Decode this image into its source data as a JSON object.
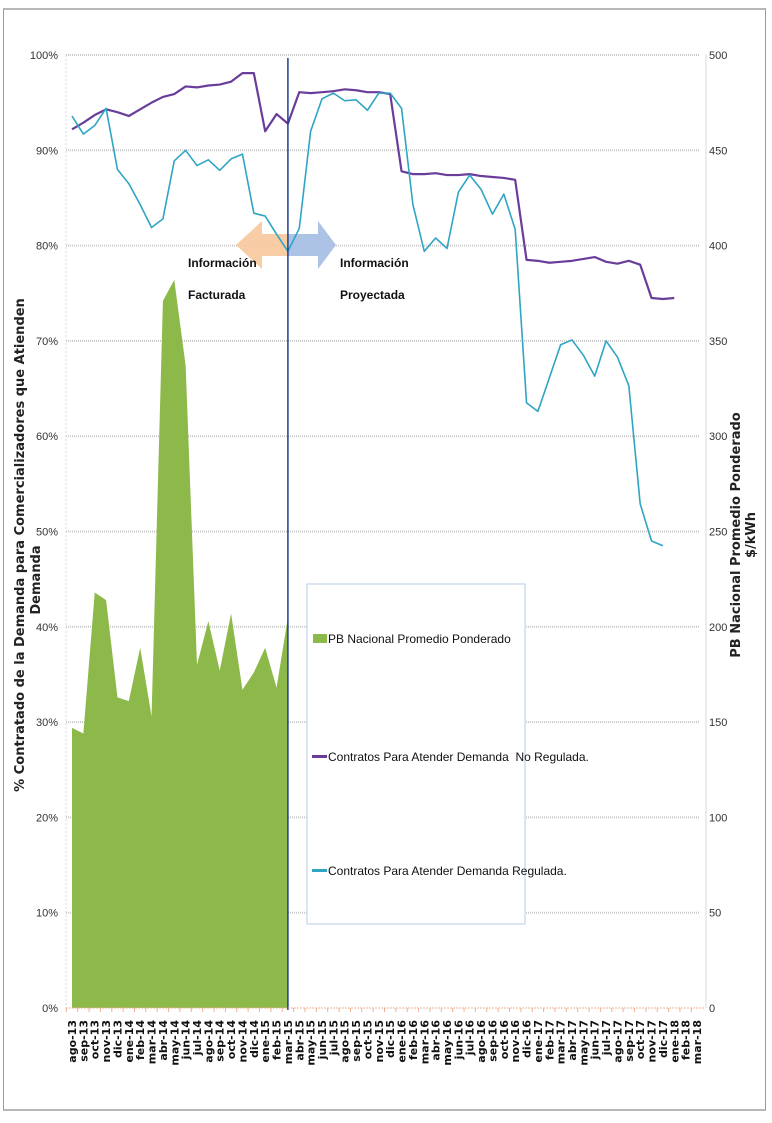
{
  "chart_data": {
    "type": "line",
    "title": "",
    "ylabel": "% Contratado de la Demanda para Comercializadores que Atienden Demanda",
    "ylabel_right": "PB Nacional Promedio Ponderado $/kWh",
    "xlabel": "",
    "ylim": [
      0,
      100
    ],
    "ylim_right": [
      0,
      500
    ],
    "yticks": [
      "0%",
      "10%",
      "20%",
      "30%",
      "40%",
      "50%",
      "60%",
      "70%",
      "80%",
      "90%",
      "100%"
    ],
    "yticks_right": [
      "0",
      "50",
      "100",
      "150",
      "200",
      "250",
      "300",
      "350",
      "400",
      "450",
      "500"
    ],
    "grid": true,
    "legend_position": "center-right",
    "categories": [
      "ago-13",
      "sep-13",
      "oct-13",
      "nov-13",
      "dic-13",
      "ene-14",
      "feb-14",
      "mar-14",
      "abr-14",
      "may-14",
      "jun-14",
      "jul-14",
      "ago-14",
      "sep-14",
      "oct-14",
      "nov-14",
      "dic-14",
      "ene-15",
      "feb-15",
      "mar-15",
      "abr-15",
      "may-15",
      "jun-15",
      "jul-15",
      "ago-15",
      "sep-15",
      "oct-15",
      "nov-15",
      "dic-15",
      "ene-16",
      "feb-16",
      "mar-16",
      "abr-16",
      "may-16",
      "jun-16",
      "jul-16",
      "ago-16",
      "sep-16",
      "oct-16",
      "nov-16",
      "dic-16",
      "ene-17",
      "feb-17",
      "mar-17",
      "abr-17",
      "may-17",
      "jun-17",
      "jul-17",
      "ago-17",
      "sep-17",
      "oct-17",
      "nov-17",
      "dic-17",
      "ene-18",
      "feb-18",
      "mar-18"
    ],
    "series": [
      {
        "name": "PB Nacional Promedio Ponderado",
        "type": "area",
        "axis": "right",
        "color": "#8db94a",
        "values": [
          147,
          144,
          218,
          214,
          163,
          161,
          189,
          153,
          371,
          382,
          337,
          180,
          203,
          177,
          207,
          167,
          176,
          189,
          168,
          205
        ]
      },
      {
        "name": "Contratos Para Atender Demanda  No Regulada.",
        "type": "line",
        "axis": "left",
        "color": "#6a3d9a",
        "values": [
          92.2,
          92.9,
          93.7,
          94.3,
          94.0,
          93.6,
          94.3,
          95.0,
          95.6,
          95.9,
          96.7,
          96.6,
          96.8,
          96.9,
          97.2,
          98.1,
          98.1,
          92.0,
          93.8,
          92.8,
          96.1,
          96.0,
          96.1,
          96.2,
          96.4,
          96.3,
          96.1,
          96.1,
          95.9,
          87.8,
          87.5,
          87.5,
          87.6,
          87.4,
          87.4,
          87.5,
          87.3,
          87.2,
          87.1,
          86.9,
          78.5,
          78.4,
          78.2,
          78.3,
          78.4,
          78.6,
          78.8,
          78.3,
          78.1,
          78.4,
          78.0,
          74.5,
          74.4,
          74.5
        ],
        "x_offset": 0
      },
      {
        "name": "Contratos Para Atender Demanda Regulada.",
        "type": "line",
        "axis": "left",
        "color": "#2fa5c4",
        "values": [
          93.6,
          91.7,
          92.6,
          94.4,
          88.0,
          86.5,
          84.3,
          81.9,
          82.8,
          88.9,
          90.0,
          88.4,
          89.0,
          87.9,
          89.1,
          89.6,
          83.4,
          83.1,
          81.2,
          79.4,
          81.8,
          92.0,
          95.4,
          96.0,
          95.2,
          95.3,
          94.2,
          96.0,
          96.0,
          94.4,
          84.3,
          79.4,
          80.8,
          79.7,
          85.6,
          87.4,
          85.9,
          83.3,
          85.4,
          81.7,
          63.5,
          62.6,
          66.1,
          69.6,
          70.1,
          68.5,
          66.3,
          70.0,
          68.3,
          65.3,
          52.9,
          49.0,
          48.5
        ],
        "x_offset": 0
      }
    ],
    "annotations": [
      {
        "text_line1": "Información",
        "text_line2": "Facturada",
        "arrow": "left",
        "arrow_color": "#f8c9a0"
      },
      {
        "text_line1": "Información",
        "text_line2": "Proyectada",
        "arrow": "right",
        "arrow_color": "#a9c0e4"
      }
    ],
    "divider_at": "mar-15",
    "divider_color": "#1f3f8f"
  }
}
